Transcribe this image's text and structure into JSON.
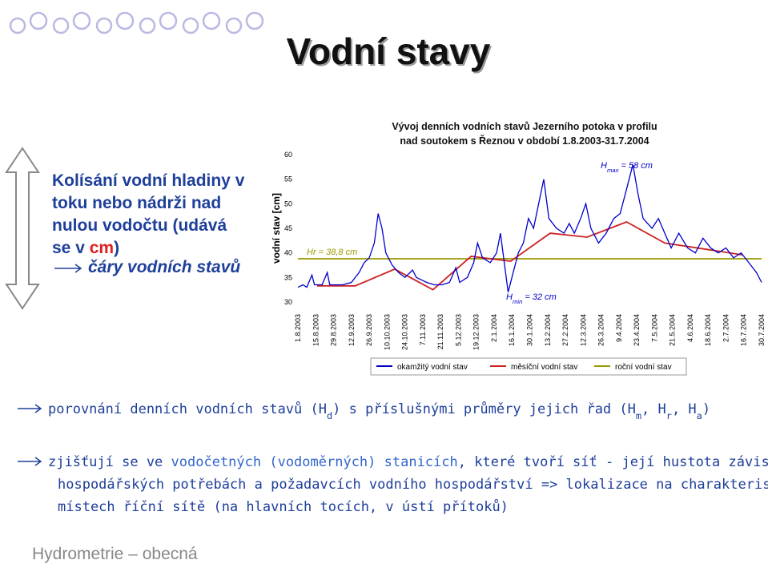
{
  "title": "Vodní stavy",
  "left_box": {
    "lines": [
      [
        {
          "text": "Kolísání vodní hladiny v"
        }
      ],
      [
        {
          "text": "toku nebo nádrži nad"
        }
      ],
      [
        {
          "text": "nulou vodočtu (udává"
        }
      ],
      [
        {
          "text": "se v "
        },
        {
          "text": "cm",
          "highlight": true
        },
        {
          "text": ")"
        }
      ],
      [
        {
          "text": "čáry vodních stavů",
          "italic": true
        }
      ]
    ]
  },
  "chart_data": {
    "type": "line",
    "title": [
      "Vývoj denních vodních stavů Jezerního potoka v profilu",
      "nad soutokem s Řeznou v období 1.8.2003-31.7.2004"
    ],
    "y_label": "vodní stav [cm]",
    "categories": [
      "1.8.2003",
      "15.8.2003",
      "29.8.2003",
      "12.9.2003",
      "26.9.2003",
      "10.10.2003",
      "24.10.2003",
      "7.11.2003",
      "21.11.2003",
      "5.12.2003",
      "19.12.2003",
      "2.1.2004",
      "16.1.2004",
      "30.1.2004",
      "13.2.2004",
      "27.2.2004",
      "12.3.2004",
      "26.3.2004",
      "9.4.2004",
      "23.4.2004",
      "7.5.2004",
      "21.5.2004",
      "4.6.2004",
      "18.6.2004",
      "2.7.2004",
      "16.7.2004",
      "30.7.2004"
    ],
    "ylim": [
      30,
      60
    ],
    "yticks": [
      30,
      35,
      40,
      45,
      50,
      55,
      60
    ],
    "grid": false,
    "series": [
      {
        "name": "okamžitý vodní stav",
        "color": "#0000cc",
        "x": [
          "1.8.2003",
          "5.8.2003",
          "8.8.2003",
          "12.8.2003",
          "14.8.2003",
          "20.8.2003",
          "24.8.2003",
          "26.8.2003",
          "5.9.2003",
          "12.9.2003",
          "18.9.2003",
          "22.9.2003",
          "26.9.2003",
          "30.9.2003",
          "3.10.2003",
          "6.10.2003",
          "9.10.2003",
          "14.10.2003",
          "19.10.2003",
          "24.10.2003",
          "30.10.2003",
          "2.11.2003",
          "10.11.2003",
          "16.11.2003",
          "22.11.2003",
          "28.11.2003",
          "3.12.2003",
          "6.12.2003",
          "12.12.2003",
          "17.12.2003",
          "20.12.2003",
          "24.12.2003",
          "30.12.2003",
          "4.1.2004",
          "7.1.2004",
          "10.1.2004",
          "13.1.2004",
          "17.1.2004",
          "21.1.2004",
          "25.1.2004",
          "29.1.2004",
          "2.2.2004",
          "6.2.2004",
          "10.2.2004",
          "14.2.2004",
          "20.2.2004",
          "26.2.2004",
          "1.3.2004",
          "5.3.2004",
          "10.3.2004",
          "14.3.2004",
          "18.3.2004",
          "24.3.2004",
          "30.3.2004",
          "5.4.2004",
          "10.4.2004",
          "16.4.2004",
          "20.4.2004",
          "24.4.2004",
          "28.4.2004",
          "5.5.2004",
          "10.5.2004",
          "15.5.2004",
          "20.5.2004",
          "26.5.2004",
          "2.6.2004",
          "8.6.2004",
          "14.6.2004",
          "20.6.2004",
          "26.6.2004",
          "2.7.2004",
          "8.7.2004",
          "14.7.2004",
          "20.7.2004",
          "26.7.2004",
          "30.7.2004"
        ],
        "values": [
          33,
          33.5,
          33,
          35.5,
          33.5,
          33.5,
          36,
          33.5,
          33.5,
          34,
          36,
          38,
          39,
          42,
          48,
          45,
          40,
          37.5,
          36,
          35,
          36.5,
          35,
          34,
          33.5,
          33.5,
          34,
          37,
          34,
          35,
          38,
          42,
          39,
          38,
          40,
          44,
          38,
          32,
          36,
          40,
          42,
          47,
          45,
          50,
          55,
          47,
          45,
          44,
          46,
          44,
          47,
          50,
          45,
          42,
          44,
          47,
          48,
          54,
          58,
          52,
          47,
          45,
          47,
          44,
          41,
          44,
          41,
          40,
          43,
          41,
          40,
          41,
          39,
          40,
          38,
          36,
          34
        ]
      },
      {
        "name": "měsíční vodní stav",
        "color": "#cc2222",
        "x": [
          "16.8.2003",
          "15.9.2003",
          "16.10.2003",
          "15.11.2003",
          "15.12.2003",
          "15.1.2004",
          "15.2.2004",
          "15.3.2004",
          "15.4.2004",
          "15.5.2004",
          "15.6.2004",
          "15.7.2004"
        ],
        "values": [
          33.3,
          33.3,
          36.7,
          32.5,
          39.3,
          38.3,
          44,
          43.2,
          46.3,
          42,
          40.8,
          39.6
        ]
      },
      {
        "name": "roční vodní stav",
        "color": "#999900",
        "x": [
          "1.8.2003",
          "30.7.2004"
        ],
        "values": [
          38.8,
          38.8
        ]
      }
    ],
    "annotations": [
      [
        {
          "text": "Hr = 38,8 cm"
        }
      ],
      [
        {
          "text": "H"
        },
        {
          "text": "max",
          "sub": true
        },
        {
          "text": " = 58 cm"
        }
      ],
      [
        {
          "text": "H"
        },
        {
          "text": "min",
          "sub": true
        },
        {
          "text": " = 32 cm"
        }
      ]
    ]
  },
  "bullets": [
    [
      {
        "text": "porovnání denních vodních stavů (H"
      },
      {
        "text": "d",
        "sub": true
      },
      {
        "text": ") s příslušnými průměry jejich řad (H"
      },
      {
        "text": "m",
        "sub": true
      },
      {
        "text": ", H"
      },
      {
        "text": "r",
        "sub": true
      },
      {
        "text": ", H"
      },
      {
        "text": "a",
        "sub": true
      },
      {
        "text": ")"
      }
    ],
    [
      {
        "text": "zjišťují se ve "
      },
      {
        "text": "vodočetných (vodoměrných) stanicích",
        "highlight": true
      },
      {
        "text": ", které tvoří síť - její hustota závisí na"
      }
    ],
    [
      {
        "text": "hospodářských potřebách a požadavcích vodního hospodářství => lokalizace na charakteristických"
      }
    ],
    [
      {
        "text": "místech říční sítě (na hlavních tocích, v ústí přítoků)"
      }
    ]
  ],
  "footer": "Hydrometrie – obecná"
}
